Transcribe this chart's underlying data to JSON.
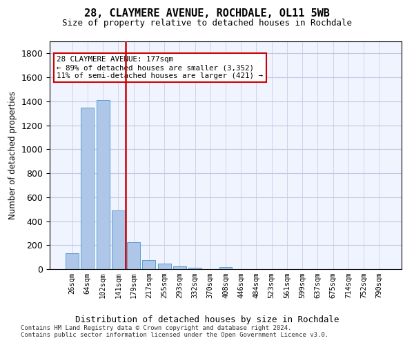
{
  "title": "28, CLAYMERE AVENUE, ROCHDALE, OL11 5WB",
  "subtitle": "Size of property relative to detached houses in Rochdale",
  "xlabel": "Distribution of detached houses by size in Rochdale",
  "ylabel": "Number of detached properties",
  "bar_color": "#aec6e8",
  "bar_edge_color": "#5a9fd4",
  "background_color": "#f0f4ff",
  "grid_color": "#c0c8e0",
  "annotation_line_color": "#cc0000",
  "categories": [
    "26sqm",
    "64sqm",
    "102sqm",
    "141sqm",
    "179sqm",
    "217sqm",
    "255sqm",
    "293sqm",
    "332sqm",
    "370sqm",
    "408sqm",
    "446sqm",
    "484sqm",
    "523sqm",
    "561sqm",
    "599sqm",
    "637sqm",
    "675sqm",
    "714sqm",
    "752sqm",
    "790sqm"
  ],
  "values": [
    130,
    1350,
    1410,
    490,
    225,
    75,
    45,
    25,
    12,
    0,
    20,
    0,
    0,
    0,
    0,
    0,
    0,
    0,
    0,
    0,
    0
  ],
  "property_size": 177,
  "property_bin_index": 3,
  "annotation_text_line1": "28 CLAYMERE AVENUE: 177sqm",
  "annotation_text_line2": "← 89% of detached houses are smaller (3,352)",
  "annotation_text_line3": "11% of semi-detached houses are larger (421) →",
  "ylim": [
    0,
    1900
  ],
  "footnote": "Contains HM Land Registry data © Crown copyright and database right 2024.\nContains public sector information licensed under the Open Government Licence v3.0."
}
